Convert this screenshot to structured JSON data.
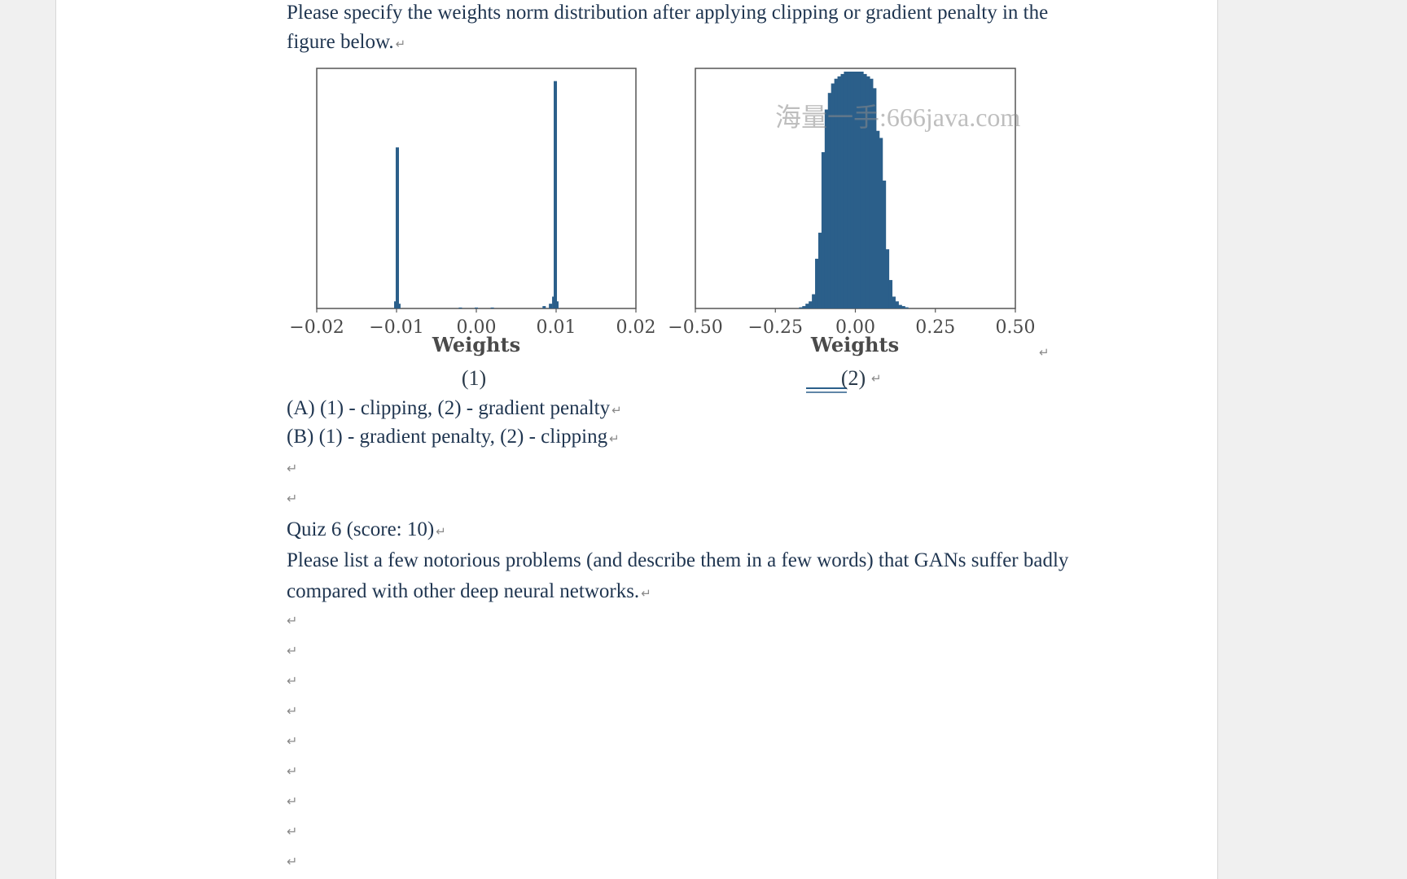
{
  "question_intro": {
    "line1": "Please specify the weights norm distribution after applying clipping or gradient penalty in the",
    "line2": "figure below."
  },
  "figure": {
    "watermark": "海量一手:666java.com",
    "panel1_caption": "(1)",
    "panel2_caption": "(2)"
  },
  "chart_data": [
    {
      "type": "bar",
      "title": "",
      "xlabel": "Weights",
      "ylabel": "",
      "xlim": [
        -0.02,
        0.02
      ],
      "xticks": [
        "−0.02",
        "−0.01",
        "0.00",
        "0.01",
        "0.02"
      ],
      "bins": [
        {
          "x": -0.0101,
          "h": 0.03
        },
        {
          "x": -0.0099,
          "h": 0.68
        },
        {
          "x": -0.0097,
          "h": 0.02
        },
        {
          "x": -0.002,
          "h": 0.004
        },
        {
          "x": 0.0,
          "h": 0.004
        },
        {
          "x": 0.002,
          "h": 0.004
        },
        {
          "x": 0.0085,
          "h": 0.01
        },
        {
          "x": 0.0093,
          "h": 0.02
        },
        {
          "x": 0.0097,
          "h": 0.05
        },
        {
          "x": 0.0099,
          "h": 0.96
        },
        {
          "x": 0.0101,
          "h": 0.03
        }
      ],
      "caption": "(1)"
    },
    {
      "type": "bar",
      "title": "",
      "xlabel": "Weights",
      "ylabel": "",
      "xlim": [
        -0.5,
        0.5
      ],
      "xticks": [
        "−0.50",
        "−0.25",
        "0.00",
        "0.25",
        "0.50"
      ],
      "bins": [
        {
          "x": -0.17,
          "h": 0.005
        },
        {
          "x": -0.16,
          "h": 0.01
        },
        {
          "x": -0.15,
          "h": 0.02
        },
        {
          "x": -0.14,
          "h": 0.03
        },
        {
          "x": -0.13,
          "h": 0.06
        },
        {
          "x": -0.12,
          "h": 0.21
        },
        {
          "x": -0.11,
          "h": 0.32
        },
        {
          "x": -0.1,
          "h": 0.66
        },
        {
          "x": -0.09,
          "h": 0.84
        },
        {
          "x": -0.08,
          "h": 0.91
        },
        {
          "x": -0.07,
          "h": 0.95
        },
        {
          "x": -0.06,
          "h": 0.97
        },
        {
          "x": -0.05,
          "h": 0.98
        },
        {
          "x": -0.04,
          "h": 0.99
        },
        {
          "x": -0.03,
          "h": 1.0
        },
        {
          "x": -0.02,
          "h": 1.0
        },
        {
          "x": -0.01,
          "h": 1.0
        },
        {
          "x": 0.0,
          "h": 1.0
        },
        {
          "x": 0.01,
          "h": 1.0
        },
        {
          "x": 0.02,
          "h": 1.0
        },
        {
          "x": 0.03,
          "h": 0.99
        },
        {
          "x": 0.04,
          "h": 0.98
        },
        {
          "x": 0.05,
          "h": 0.97
        },
        {
          "x": 0.06,
          "h": 0.93
        },
        {
          "x": 0.07,
          "h": 0.75
        },
        {
          "x": 0.08,
          "h": 0.72
        },
        {
          "x": 0.09,
          "h": 0.54
        },
        {
          "x": 0.1,
          "h": 0.25
        },
        {
          "x": 0.11,
          "h": 0.12
        },
        {
          "x": 0.12,
          "h": 0.05
        },
        {
          "x": 0.13,
          "h": 0.03
        },
        {
          "x": 0.14,
          "h": 0.015
        },
        {
          "x": 0.15,
          "h": 0.01
        },
        {
          "x": 0.16,
          "h": 0.005
        }
      ],
      "caption": "(2)"
    }
  ],
  "options": {
    "a": "(A) (1) - clipping, (2) - gradient penalty",
    "b": "(B) (1) - gradient penalty, (2) - clipping"
  },
  "quiz6": {
    "title": "Quiz 6 (score: 10)",
    "line1": "Please list a few notorious problems (and describe them in a few words) that GANs suffer badly",
    "line2": "compared with other deep neural networks."
  },
  "paragraph_mark": "↵",
  "colors": {
    "bar": "#2b5f8a",
    "frame": "#555555",
    "page": "#ffffff",
    "desk": "#f0f0f0"
  }
}
